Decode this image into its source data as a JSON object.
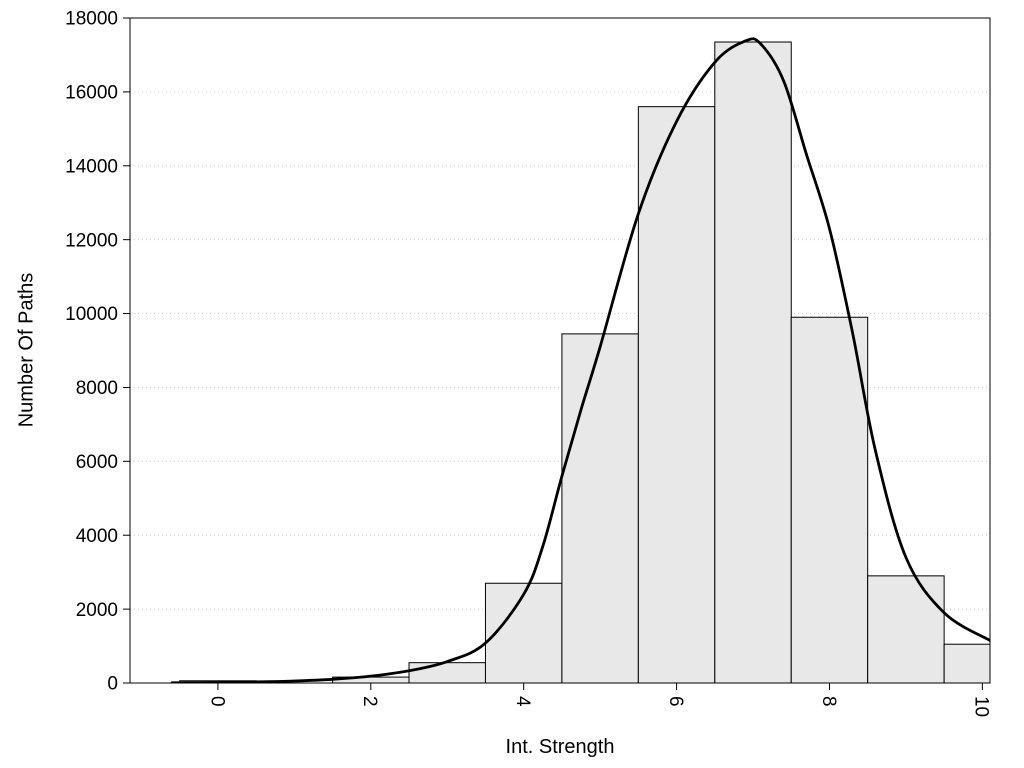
{
  "page": {
    "background": "#ffffff",
    "text_color": "#000000"
  },
  "chart_data": {
    "type": "bar",
    "subtype": "histogram-with-density-curve",
    "title": "",
    "xlabel": "Int. Strength",
    "ylabel": "Number Of Paths",
    "xlim": [
      -1.15,
      10.1
    ],
    "ylim": [
      0,
      18000
    ],
    "xticks": [
      0,
      2,
      4,
      6,
      8,
      10
    ],
    "yticks": [
      0,
      2000,
      4000,
      6000,
      8000,
      10000,
      12000,
      14000,
      16000,
      18000
    ],
    "xtick_labels_rotated": true,
    "grid": "horizontal-dotted",
    "grid_color": "#c8c8c8",
    "bar_fill": "#e8e8e8",
    "bar_stroke": "#000000",
    "curve_color": "#000000",
    "legend": "none",
    "bars": {
      "bin_width": 1,
      "centers": [
        0,
        1,
        2,
        3,
        4,
        5,
        6,
        7,
        8,
        9,
        10
      ],
      "counts": [
        60,
        0,
        160,
        550,
        2700,
        9450,
        15600,
        17350,
        9900,
        2900,
        1050
      ]
    },
    "curve": {
      "x": [
        -0.6,
        0,
        0.5,
        1,
        1.5,
        2,
        2.5,
        3,
        3.5,
        4,
        4.25,
        4.5,
        4.75,
        5,
        5.5,
        6,
        6.5,
        6.9,
        7.1,
        7.4,
        7.7,
        8,
        8.3,
        8.6,
        9,
        9.5,
        10.1
      ],
      "y": [
        5,
        15,
        30,
        55,
        100,
        185,
        330,
        580,
        1080,
        2400,
        3700,
        5600,
        7400,
        9100,
        12700,
        15200,
        16800,
        17380,
        17300,
        16300,
        14300,
        12300,
        9500,
        6300,
        3400,
        1900,
        1150
      ]
    }
  }
}
